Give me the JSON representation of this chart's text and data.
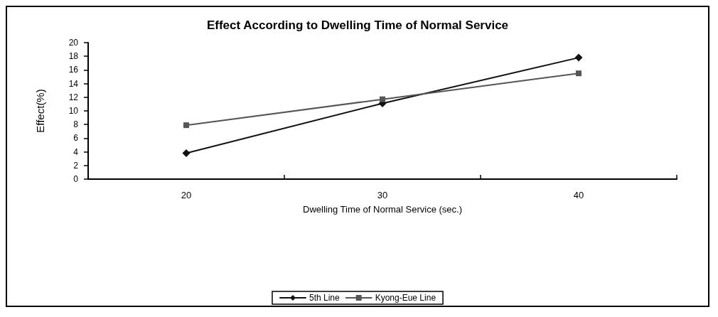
{
  "chart_data": {
    "type": "line",
    "title": "Effect According to Dwelling Time of Normal Service",
    "xlabel": "Dwelling Time of Normal Service (sec.)",
    "ylabel": "Effect(%)",
    "categories": [
      "20",
      "30",
      "40"
    ],
    "series": [
      {
        "name": "5th Line",
        "color": "#111111",
        "marker": "diamond",
        "values": [
          3.8,
          11.1,
          17.8
        ]
      },
      {
        "name": "Kyong-Eue Line",
        "color": "#555555",
        "marker": "square",
        "values": [
          7.9,
          11.7,
          15.5
        ]
      }
    ],
    "ylim": [
      0,
      20
    ],
    "yticks": [
      0,
      2,
      4,
      6,
      8,
      10,
      12,
      14,
      16,
      18,
      20
    ],
    "grid": false,
    "legend": "bottom"
  }
}
